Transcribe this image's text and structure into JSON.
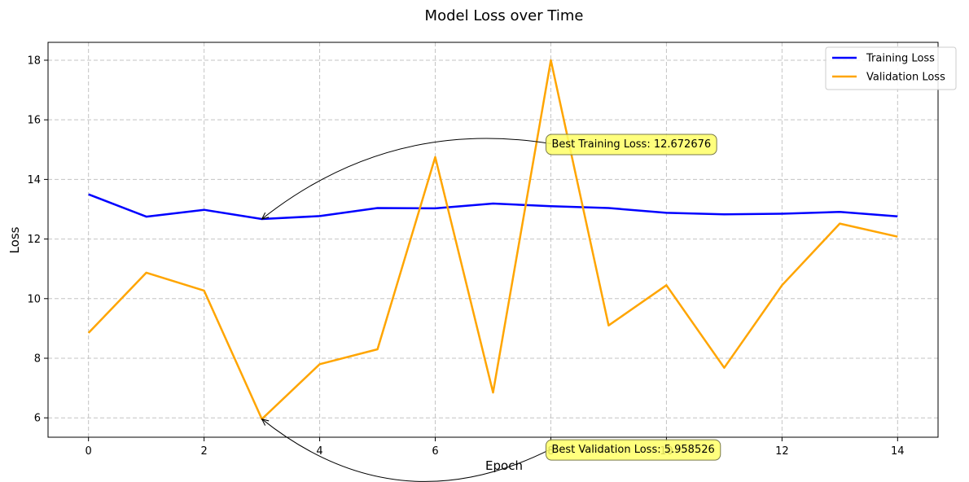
{
  "chart_data": {
    "type": "line",
    "title": "Model Loss over Time",
    "xlabel": "Epoch",
    "ylabel": "Loss",
    "xlim": [
      -0.7,
      14.7
    ],
    "ylim": [
      5.35,
      18.6
    ],
    "xticks": [
      0,
      2,
      4,
      6,
      8,
      10,
      12,
      14
    ],
    "yticks": [
      6,
      8,
      10,
      12,
      14,
      16,
      18
    ],
    "grid": true,
    "legend_position": "top-right",
    "x": [
      0,
      1,
      2,
      3,
      4,
      5,
      6,
      7,
      8,
      9,
      10,
      11,
      12,
      13,
      14
    ],
    "series": [
      {
        "name": "Training Loss",
        "color": "#0000ff",
        "values": [
          13.5,
          12.75,
          12.98,
          12.672676,
          12.77,
          13.04,
          13.03,
          13.19,
          13.1,
          13.04,
          12.88,
          12.83,
          12.85,
          12.91,
          12.76
        ]
      },
      {
        "name": "Validation Loss",
        "color": "#ffa500",
        "values": [
          8.85,
          10.87,
          10.27,
          5.958526,
          7.8,
          8.3,
          14.75,
          6.85,
          18.0,
          9.1,
          10.45,
          7.68,
          10.45,
          12.52,
          12.08
        ]
      }
    ],
    "annotations": [
      {
        "text": "Best Training Loss: 12.672676",
        "point": [
          3,
          12.672676
        ],
        "text_pos": [
          8,
          15.2
        ]
      },
      {
        "text": "Best Validation Loss: 5.958526",
        "point": [
          3,
          5.958526
        ],
        "text_pos": [
          8,
          4.95
        ]
      }
    ]
  }
}
